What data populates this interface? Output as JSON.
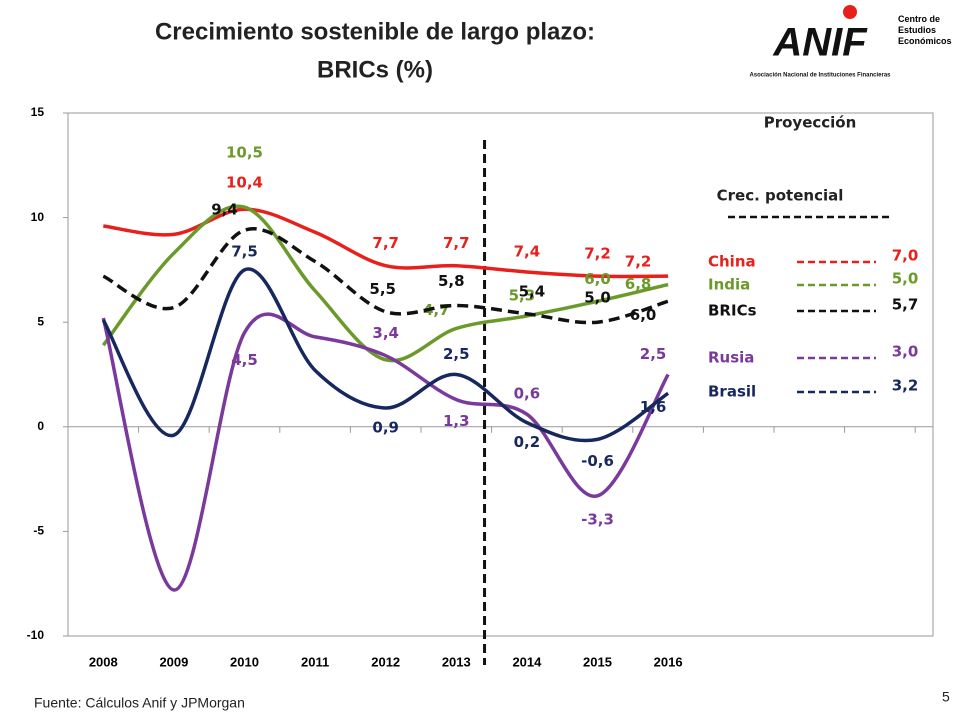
{
  "chart_data": {
    "type": "line",
    "title": "Crecimiento sostenible de largo plazo:",
    "subtitle": "BRICs (%)",
    "source": "Fuente: Cálculos Anif y JPMorgan",
    "page_number": "5",
    "logo": {
      "name": "ANIF",
      "center": "Centro de Estudios Económicos",
      "association": "Asociación Nacional de Instituciones Financieras"
    },
    "projection_label": "Proyección",
    "potential_label": "Crec. potencial",
    "projection_x": 2013.4,
    "categories": [
      "2008",
      "2009",
      "2010",
      "2011",
      "2012",
      "2013",
      "2014",
      "2015",
      "2016"
    ],
    "ylim": [
      -10,
      15
    ],
    "yticks": [
      -10,
      -5,
      0,
      5,
      10,
      15
    ],
    "series": [
      {
        "name": "China",
        "color": "#e8201c",
        "values": [
          9.6,
          9.2,
          10.4,
          9.3,
          7.7,
          7.7,
          7.4,
          7.2,
          7.2
        ],
        "value_labels": [
          null,
          null,
          "10,4",
          null,
          "7,7",
          "7,7",
          "7,4",
          "7,2",
          "7,2"
        ],
        "potential": {
          "value": 7.0,
          "label": "7,0"
        }
      },
      {
        "name": "India",
        "color": "#6b9a2a",
        "values": [
          3.9,
          8.3,
          10.5,
          6.5,
          3.2,
          4.7,
          5.3,
          6.0,
          6.8
        ],
        "value_labels": [
          null,
          null,
          "10,5",
          null,
          null,
          "4,7",
          "5,3",
          "6,0",
          "6,8"
        ],
        "potential": {
          "value": 5.0,
          "label": "5,0"
        }
      },
      {
        "name": "BRICs",
        "color": "#111111",
        "dashed": true,
        "values": [
          7.2,
          5.7,
          9.4,
          7.9,
          5.5,
          5.8,
          5.4,
          5.0,
          6.0
        ],
        "value_labels": [
          null,
          null,
          "9,4",
          null,
          "5,5",
          "5,8",
          "5,4",
          "5,0",
          "6,0"
        ],
        "potential": {
          "value": 5.7,
          "label": "5,7"
        }
      },
      {
        "name": "Rusia",
        "color": "#7a3a9c",
        "values": [
          5.2,
          -7.8,
          4.5,
          4.3,
          3.4,
          1.3,
          0.6,
          -3.3,
          2.5
        ],
        "value_labels": [
          null,
          null,
          "4,5",
          null,
          "3,4",
          "1,3",
          "0,6",
          "-3,3",
          "2,5"
        ],
        "potential": {
          "value": 3.0,
          "label": "3,0"
        }
      },
      {
        "name": "Brasil",
        "color": "#17285e",
        "values": [
          5.1,
          -0.4,
          7.5,
          2.7,
          0.9,
          2.5,
          0.2,
          -0.6,
          1.6
        ],
        "value_labels": [
          null,
          null,
          "7,5",
          null,
          "0,9",
          "2,5",
          "0,2",
          "-0,6",
          "1,6"
        ],
        "potential": {
          "value": 3.2,
          "label": "3,2"
        }
      }
    ]
  }
}
